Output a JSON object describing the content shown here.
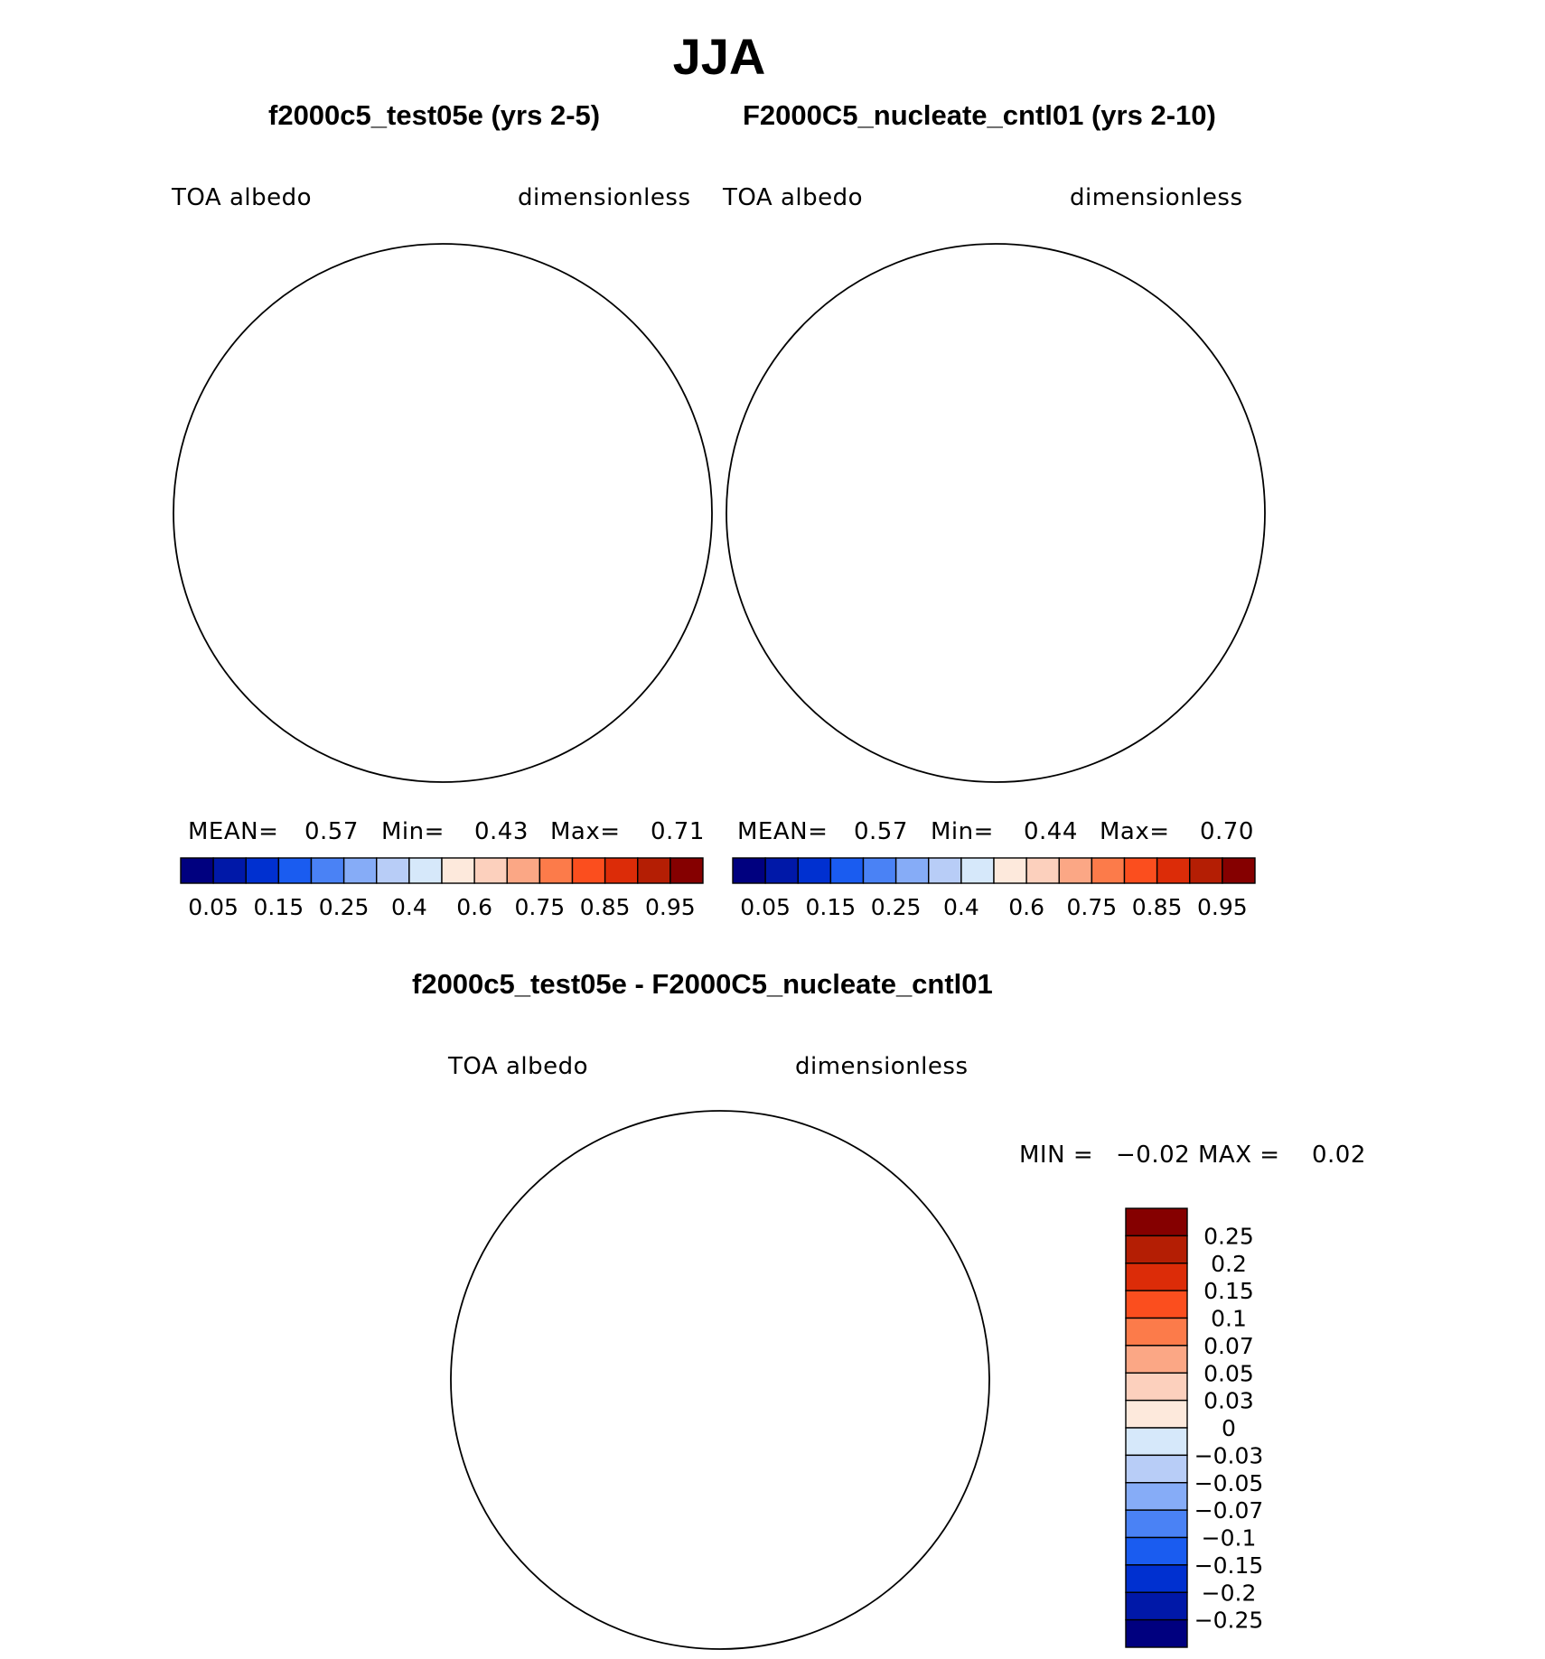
{
  "figure_title": "JJA",
  "panels": [
    {
      "title": "f2000c5_test05e (yrs 2-5)",
      "variable": "TOA  albedo",
      "units": "dimensionless",
      "stats": {
        "mean_label": "MEAN=",
        "mean": "0.57",
        "min_label": "Min=",
        "min": "0.43",
        "max_label": "Max=",
        "max": "0.71"
      }
    },
    {
      "title": "F2000C5_nucleate_cntl01 (yrs 2-10)",
      "variable": "TOA  albedo",
      "units": "dimensionless",
      "stats": {
        "mean_label": "MEAN=",
        "mean": "0.57",
        "min_label": "Min=",
        "min": "0.44",
        "max_label": "Max=",
        "max": "0.70"
      }
    }
  ],
  "difference": {
    "title": "f2000c5_test05e - F2000C5_nucleate_cntl01",
    "variable": "TOA  albedo",
    "units": "dimensionless",
    "min_label": "MIN =",
    "min": "−0.02",
    "max_label": "MAX =",
    "max": "0.02"
  },
  "colorbar_main": {
    "colors": [
      "#00007f",
      "#0018a8",
      "#0030d0",
      "#1a5cf0",
      "#4a82f5",
      "#86acf7",
      "#b8cdf7",
      "#d6e8fa",
      "#fde9dc",
      "#fcd0bd",
      "#fba785",
      "#fc7b4a",
      "#fb4e1e",
      "#dc2c08",
      "#b41e04",
      "#850000"
    ],
    "labels": [
      "0.05",
      "0.15",
      "0.25",
      "0.4",
      "0.6",
      "0.75",
      "0.85",
      "0.95"
    ]
  },
  "colorbar_diff": {
    "colors": [
      "#850000",
      "#b41e04",
      "#dc2c08",
      "#fb4e1e",
      "#fc7b4a",
      "#fba785",
      "#fcd0bd",
      "#fde9dc",
      "#d6e8fa",
      "#b8cdf7",
      "#86acf7",
      "#4a82f5",
      "#1a5cf0",
      "#0030d0",
      "#0018a8",
      "#00007f"
    ],
    "labels": [
      "0.25",
      "0.2",
      "0.15",
      "0.1",
      "0.07",
      "0.05",
      "0.03",
      "0",
      "−0.03",
      "−0.05",
      "−0.07",
      "−0.1",
      "−0.15",
      "−0.2",
      "−0.25"
    ]
  },
  "map_colors": {
    "ocean_low": "#d6e8fa",
    "band_light": "#fde9dc",
    "band_mid": "#fcd0bd",
    "peak": "#fba785",
    "pole_hole": "#ffffff"
  }
}
